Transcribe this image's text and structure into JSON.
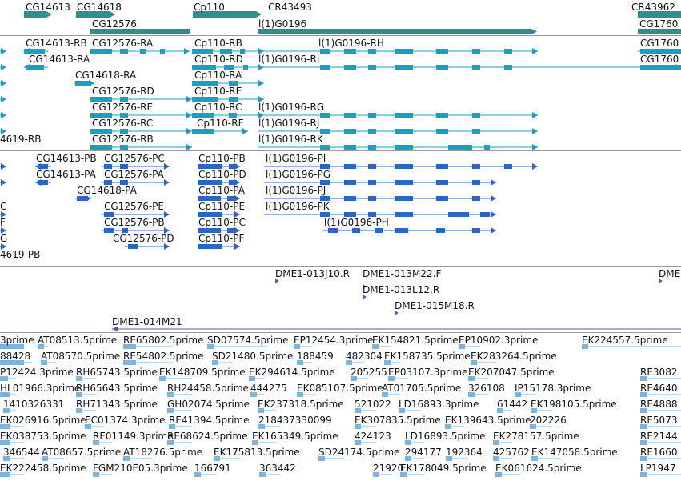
{
  "colors": {
    "gene": "#2f8f8f",
    "mrna": "#1a9fc4",
    "cds": "#2e64c8",
    "clone": "#6b4fb0",
    "est": "#7db3dc",
    "separator": "#9a9a9a"
  },
  "gene_track": {
    "labels": [
      "CG14613",
      "CG14618",
      "Cp110",
      "CR43493",
      "CR43962",
      "CG12576",
      "l(1)G0196",
      "CG1760"
    ]
  },
  "transcript_track": {
    "labels": [
      "CG14613-RB",
      "CG12576-RA",
      "Cp110-RB",
      "l(1)G0196-RH",
      "CG1760",
      "CG14613-RA",
      "Cp110-RD",
      "l(1)G0196-RI",
      "CG1760",
      "CG14618-RA",
      "Cp110-RA",
      "CG12576-RD",
      "Cp110-RE",
      "CG12576-RE",
      "Cp110-RC",
      "l(1)G0196-RG",
      "CG12576-RC",
      "Cp110-RF",
      "l(1)G0196-RJ",
      "4619-RB",
      "CG12576-RB",
      "l(1)G0196-RK"
    ]
  },
  "protein_track": {
    "labels": [
      "CG14613-PB",
      "CG12576-PC",
      "Cp110-PB",
      "l(1)G0196-PI",
      "CG14613-PA",
      "CG12576-PA",
      "Cp110-PD",
      "l(1)G0196-PG",
      "CG14618-PA",
      "Cp110-PA",
      "l(1)G0196-PJ",
      "C",
      "CG12576-PE",
      "Cp110-PE",
      "l(1)G0196-PK",
      "F",
      "CG12576-PB",
      "Cp110-PC",
      "l(1)G0196-PH",
      "G",
      "CG12576-PD",
      "Cp110-PF",
      "4619-PB"
    ]
  },
  "clone_track": {
    "labels": [
      "DME1-013J10.R",
      "DME1-013M22.F",
      "DME",
      "DME1-013L12.R",
      "DME1-015M18.R",
      "DME1-014M21"
    ]
  },
  "est_track": {
    "rows": [
      [
        "3prime",
        "AT08513.5prime",
        "RE65802.5prime",
        "SD07574.5prime",
        "EP12454.3prime",
        "EK154821.5prime",
        "EP10902.3prime",
        "EK224557.5prime"
      ],
      [
        "88428",
        "AT08570.5prime",
        "RE54802.5prime",
        "SD21480.5prime",
        "188459",
        "482304",
        "EK158735.5prime",
        "EK283264.5prime"
      ],
      [
        "P12424.3prime",
        "RH65743.5prime",
        "EK148709.5prime",
        "EK294614.5prime",
        "205255",
        "EP03107.3prime",
        "EK207047.5prime",
        "RE3082"
      ],
      [
        "HL01966.3prime",
        "RH65643.5prime",
        "RH24458.5prime",
        "444275",
        "EK085107.5prime",
        "AT01705.5prime",
        "326108",
        "IP15178.3prime",
        "RE4640"
      ],
      [
        "1410326331",
        "RH71343.5prime",
        "GH02074.5prime",
        "EK237318.5prime",
        "521022",
        "LD16893.3prime",
        "61442",
        "EK198105.5prime",
        "RE4888"
      ],
      [
        "EK026916.5prime",
        "EC01374.3prime",
        "RE41394.5prime",
        "218437330099",
        "EK307835.5prime",
        "EK139643.5prime",
        "202226",
        "RE5073"
      ],
      [
        "EK038753.5prime",
        "RE01149.3prime",
        "RE68624.5prime",
        "EK165349.5prime",
        "424123",
        "LD16893.5prime",
        "EK278157.5prime",
        "RE2144"
      ],
      [
        "346544",
        "AT08657.5prime",
        "AT18276.5prime",
        "EK175813.5prime",
        "SD24174.5prime",
        "294177",
        "192364",
        "425762",
        "EK147058.5prime",
        "RE1660"
      ],
      [
        "EK222458.5prime",
        "FGM210E05.3prime",
        "166791",
        "363442",
        "21920",
        "EK178049.5prime",
        "EK061624.5prime",
        "LP1947"
      ]
    ]
  }
}
